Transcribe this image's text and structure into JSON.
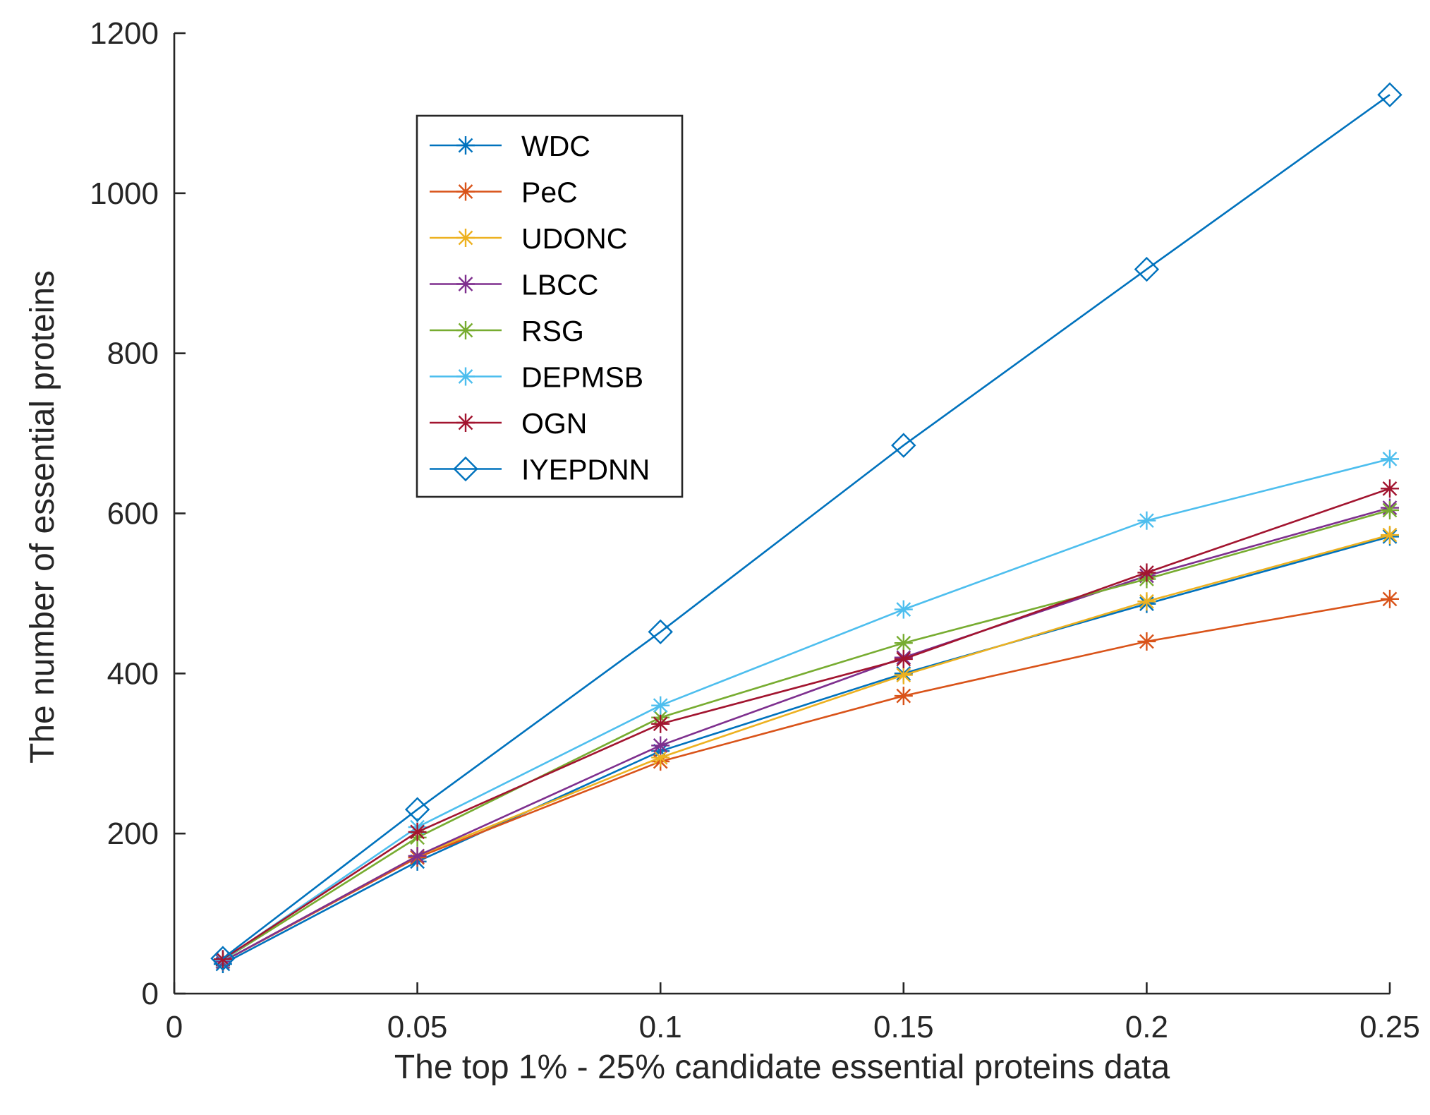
{
  "chart_data": {
    "type": "line",
    "title": "",
    "xlabel": "The top 1% - 25% candidate essential proteins data",
    "ylabel": "The number of essential proteins",
    "xlim": [
      0,
      0.25
    ],
    "ylim": [
      0,
      1200
    ],
    "xticks": [
      0,
      0.05,
      0.1,
      0.15,
      0.2,
      0.25
    ],
    "xtick_labels": [
      "0",
      "0.05",
      "0.1",
      "0.15",
      "0.2",
      "0.25"
    ],
    "yticks": [
      0,
      200,
      400,
      600,
      800,
      1000,
      1200
    ],
    "ytick_labels": [
      "0",
      "200",
      "400",
      "600",
      "800",
      "1000",
      "1200"
    ],
    "grid": false,
    "legend_position": "top-left",
    "x": [
      0.01,
      0.05,
      0.1,
      0.15,
      0.2,
      0.25
    ],
    "series": [
      {
        "name": "WDC",
        "color": "#0072BD",
        "marker": "asterisk",
        "values": [
          37,
          165,
          303,
          400,
          487,
          571
        ]
      },
      {
        "name": "PeC",
        "color": "#D95319",
        "marker": "asterisk",
        "values": [
          40,
          170,
          290,
          372,
          440,
          493
        ]
      },
      {
        "name": "UDONC",
        "color": "#EDB120",
        "marker": "asterisk",
        "values": [
          40,
          172,
          295,
          398,
          490,
          573
        ]
      },
      {
        "name": "LBCC",
        "color": "#7E2F8E",
        "marker": "asterisk",
        "values": [
          40,
          172,
          310,
          420,
          522,
          607
        ]
      },
      {
        "name": "RSG",
        "color": "#77AC30",
        "marker": "asterisk",
        "values": [
          42,
          195,
          345,
          438,
          518,
          604
        ]
      },
      {
        "name": "DEPMSB",
        "color": "#4DBEEE",
        "marker": "asterisk",
        "values": [
          42,
          208,
          360,
          480,
          591,
          668
        ]
      },
      {
        "name": "OGN",
        "color": "#A2142F",
        "marker": "asterisk",
        "values": [
          43,
          202,
          337,
          418,
          526,
          631
        ]
      },
      {
        "name": "IYEPDNN",
        "color": "#0072BD",
        "marker": "diamond",
        "values": [
          44,
          230,
          452,
          685,
          905,
          1123
        ]
      }
    ]
  }
}
